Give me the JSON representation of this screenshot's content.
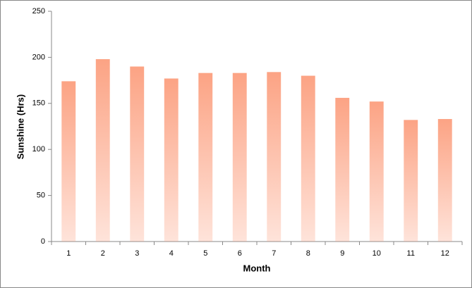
{
  "chart_data": {
    "type": "bar",
    "x_label": "Month",
    "y_label": "Sunshine (Hrs)",
    "categories": [
      "1",
      "2",
      "3",
      "4",
      "5",
      "6",
      "7",
      "8",
      "9",
      "10",
      "11",
      "12"
    ],
    "values": [
      174,
      198,
      190,
      177,
      183,
      183,
      184,
      180,
      156,
      152,
      132,
      133
    ],
    "color": "#fca384",
    "ylim": [
      0,
      250
    ],
    "yticks": [
      0,
      50,
      100,
      150,
      200,
      250
    ],
    "grid": false
  }
}
